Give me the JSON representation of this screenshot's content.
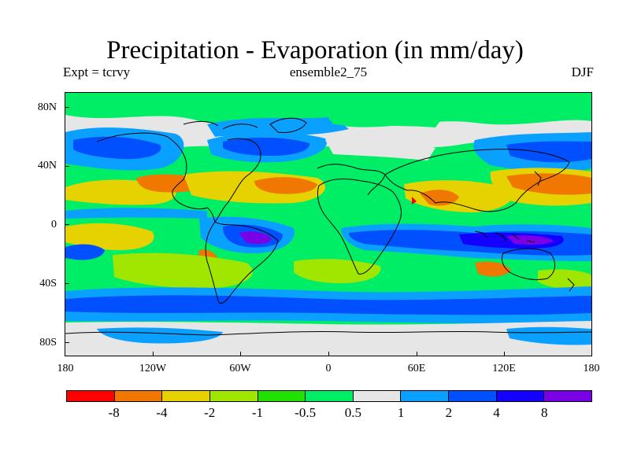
{
  "title": "Precipitation - Evaporation (in mm/day)",
  "subtitle_left": "Expt = tcrvy",
  "subtitle_center": "ensemble2_75",
  "subtitle_right": "DJF",
  "map": {
    "lat_labels": [
      "80N",
      "40N",
      "0",
      "40S",
      "80S"
    ],
    "lon_labels": [
      "180",
      "120W",
      "60W",
      "0",
      "60E",
      "120E",
      "180"
    ],
    "background": "#00ee66"
  },
  "colorbar": {
    "colors": [
      "#ff0000",
      "#f07800",
      "#e6d200",
      "#a0e600",
      "#22e000",
      "#00ee66",
      "#e6e6e6",
      "#0aa0ff",
      "#0050ff",
      "#1400ff",
      "#7a00e6"
    ],
    "labels": [
      "-8",
      "-4",
      "-2",
      "-1",
      "-0.5",
      "0.5",
      "1",
      "2",
      "4",
      "8"
    ]
  }
}
